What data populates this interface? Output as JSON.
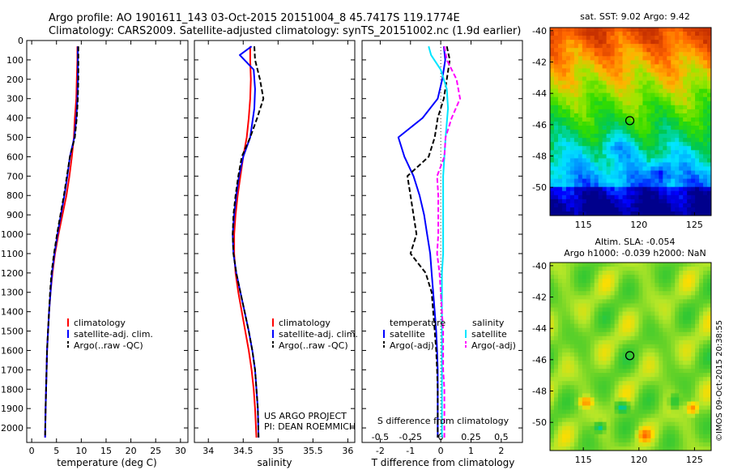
{
  "header": {
    "line1": "Argo profile: AO 1901611_143 03-Oct-2015 20151004_8 45.7417S 119.1774E",
    "line2": "Climatology: CARS2009. Satellite-adjusted climatology: synTS_20151002.nc (1.9d earlier)"
  },
  "colors": {
    "climatology": "#ff0000",
    "satellite": "#0000ff",
    "argo": "#000000",
    "satellite_salinity": "#00e5ff",
    "argo_salinity_diff": "#ff00ff"
  },
  "chart_data": [
    {
      "type": "line",
      "id": "temperature",
      "xlabel": "temperature (deg C)",
      "ylabel": "",
      "xlim": [
        -1,
        31.5
      ],
      "ylim": [
        0,
        2075
      ],
      "y_reversed": true,
      "xticks": [
        0,
        5,
        10,
        15,
        20,
        25,
        30
      ],
      "yticks": [
        0,
        100,
        200,
        300,
        400,
        500,
        600,
        700,
        800,
        900,
        1000,
        1100,
        1200,
        1300,
        1400,
        1500,
        1600,
        1700,
        1800,
        1900,
        2000
      ],
      "legend": {
        "position": "lower-center",
        "entries": [
          "climatology",
          "satellite-adj. clim.",
          "Argo(..raw -QC)"
        ]
      },
      "series": [
        {
          "name": "climatology",
          "color": "#ff0000",
          "dash": "solid",
          "x": [
            9.2,
            9.2,
            9.1,
            9.0,
            8.7,
            8.5,
            8.1,
            7.6,
            7.0,
            6.2,
            5.4,
            4.7,
            4.2,
            3.8,
            3.5,
            3.3,
            3.1,
            3.0,
            2.9,
            2.8,
            2.7
          ],
          "y": [
            30,
            100,
            200,
            300,
            400,
            500,
            600,
            700,
            800,
            900,
            1000,
            1100,
            1200,
            1300,
            1400,
            1500,
            1600,
            1700,
            1800,
            1900,
            2050
          ]
        },
        {
          "name": "satellite-adj. clim.",
          "color": "#0000ff",
          "dash": "solid",
          "x": [
            9.3,
            9.3,
            9.3,
            9.2,
            9.0,
            8.6,
            7.7,
            7.2,
            6.6,
            5.9,
            5.2,
            4.6,
            4.1,
            3.8,
            3.5,
            3.3,
            3.1,
            3.0,
            2.9,
            2.8,
            2.7
          ],
          "y": [
            30,
            100,
            200,
            300,
            400,
            500,
            600,
            700,
            800,
            900,
            1000,
            1100,
            1200,
            1300,
            1400,
            1500,
            1600,
            1700,
            1800,
            1900,
            2050
          ]
        },
        {
          "name": "Argo(..raw -QC)",
          "color": "#000000",
          "dash": "dashed",
          "x": [
            9.4,
            9.4,
            9.4,
            9.3,
            9.1,
            8.7,
            7.7,
            7.1,
            6.5,
            5.8,
            5.1,
            4.5,
            4.0,
            3.7,
            3.5,
            3.3,
            3.1,
            3.0,
            2.9,
            2.8,
            2.7
          ],
          "y": [
            30,
            100,
            200,
            300,
            400,
            500,
            600,
            700,
            800,
            900,
            1000,
            1100,
            1200,
            1300,
            1400,
            1500,
            1600,
            1700,
            1800,
            1900,
            2050
          ]
        }
      ]
    },
    {
      "type": "line",
      "id": "salinity",
      "xlabel": "salinity",
      "ylabel": "",
      "xlim": [
        33.8,
        36.1
      ],
      "ylim": [
        0,
        2075
      ],
      "y_reversed": true,
      "xticks": [
        34,
        34.5,
        35,
        35.5,
        36
      ],
      "legend": {
        "position": "lower-center",
        "entries": [
          "climatology",
          "satellite-adj. clim.",
          "Argo(..raw -QC)"
        ]
      },
      "annotation": [
        "US ARGO PROJECT",
        "PI: DEAN ROEMMICH"
      ],
      "series": [
        {
          "name": "climatology",
          "color": "#ff0000",
          "dash": "solid",
          "x": [
            34.6,
            34.6,
            34.61,
            34.6,
            34.58,
            34.55,
            34.5,
            34.46,
            34.42,
            34.39,
            34.37,
            34.37,
            34.39,
            34.43,
            34.48,
            34.53,
            34.58,
            34.62,
            34.65,
            34.67,
            34.69
          ],
          "y": [
            30,
            100,
            200,
            300,
            400,
            500,
            600,
            700,
            800,
            900,
            1000,
            1100,
            1200,
            1300,
            1400,
            1500,
            1600,
            1700,
            1800,
            1900,
            2050
          ]
        },
        {
          "name": "satellite-adj. clim.",
          "color": "#0000ff",
          "dash": "solid",
          "x": [
            34.62,
            34.45,
            34.65,
            34.67,
            34.66,
            34.6,
            34.5,
            34.44,
            34.4,
            34.37,
            34.35,
            34.36,
            34.4,
            34.46,
            34.52,
            34.58,
            34.63,
            34.67,
            34.69,
            34.71,
            34.72
          ],
          "y": [
            30,
            75,
            150,
            250,
            350,
            500,
            600,
            700,
            800,
            900,
            1000,
            1100,
            1200,
            1300,
            1400,
            1500,
            1600,
            1700,
            1800,
            1900,
            2050
          ]
        },
        {
          "name": "Argo(..raw -QC)",
          "color": "#000000",
          "dash": "dashed",
          "x": [
            34.66,
            34.67,
            34.74,
            34.79,
            34.7,
            34.6,
            34.48,
            34.43,
            34.39,
            34.36,
            34.35,
            34.36,
            34.4,
            34.46,
            34.52,
            34.58,
            34.63,
            34.67,
            34.69,
            34.71,
            34.72
          ],
          "y": [
            30,
            100,
            200,
            300,
            400,
            500,
            600,
            700,
            800,
            900,
            1000,
            1100,
            1200,
            1300,
            1400,
            1500,
            1600,
            1700,
            1800,
            1900,
            2050
          ]
        }
      ]
    },
    {
      "type": "line",
      "id": "difference",
      "xlabel": "T difference from climatology",
      "xlabel_top": "S difference from climatology",
      "ylabel": "",
      "xlim": [
        -2.6,
        2.7
      ],
      "ylim": [
        0,
        2075
      ],
      "y_reversed": true,
      "xticks": [
        -2,
        -1,
        0,
        1,
        2
      ],
      "s_xticks": [
        -0.5,
        -0.25,
        0,
        0.25,
        0.5
      ],
      "s_scale_factor": 4,
      "legend": {
        "position": "lower-center",
        "headers": [
          "temperature",
          "salinity"
        ],
        "entries": [
          "satellite",
          "Argo(-adj)",
          "satellite",
          "Argo(-adj)"
        ]
      },
      "series": [
        {
          "name": "T satellite",
          "color": "#0000ff",
          "dash": "solid",
          "x": [
            0.1,
            0.15,
            0.05,
            -0.1,
            -0.6,
            -1.4,
            -1.2,
            -0.9,
            -0.7,
            -0.55,
            -0.45,
            -0.35,
            -0.3,
            -0.25,
            -0.2,
            -0.15,
            -0.12,
            -0.1,
            -0.1,
            -0.1
          ],
          "y": [
            30,
            100,
            200,
            300,
            400,
            500,
            600,
            700,
            800,
            900,
            1000,
            1100,
            1200,
            1300,
            1400,
            1500,
            1600,
            1700,
            1800,
            2050
          ]
        },
        {
          "name": "T Argo(-adj)",
          "color": "#000000",
          "dash": "dashed",
          "x": [
            0.2,
            0.3,
            0.2,
            0.1,
            -0.1,
            -0.2,
            -0.4,
            -1.1,
            -1.0,
            -0.9,
            -0.8,
            -1.0,
            -0.5,
            -0.3,
            -0.25,
            -0.2,
            -0.15,
            -0.12,
            -0.1,
            -0.1
          ],
          "y": [
            30,
            100,
            200,
            300,
            400,
            500,
            600,
            700,
            800,
            900,
            1000,
            1100,
            1200,
            1300,
            1400,
            1500,
            1600,
            1700,
            1800,
            2050
          ]
        },
        {
          "name": "S satellite",
          "color": "#00e5ff",
          "dash": "solid",
          "x": [
            -0.1,
            -0.08,
            0.0,
            0.05,
            0.06,
            0.04,
            0.03,
            0.02,
            0.02,
            0.02,
            0.02,
            0.02,
            0.01,
            0.01,
            0.01,
            0.01,
            0.01,
            0.01,
            0.01,
            0.01
          ],
          "y": [
            30,
            75,
            150,
            250,
            350,
            500,
            600,
            700,
            800,
            900,
            1000,
            1100,
            1200,
            1300,
            1400,
            1500,
            1600,
            1700,
            1800,
            2050
          ]
        },
        {
          "name": "S Argo(-adj)",
          "color": "#ff00ff",
          "dash": "dashed",
          "x": [
            0.03,
            0.05,
            0.13,
            0.16,
            0.09,
            0.04,
            0.03,
            -0.03,
            -0.02,
            -0.02,
            -0.02,
            -0.03,
            -0.01,
            0.0,
            0.01,
            0.02,
            0.02,
            0.02,
            0.03,
            0.03
          ],
          "y": [
            30,
            100,
            200,
            300,
            400,
            500,
            600,
            700,
            800,
            900,
            1000,
            1100,
            1200,
            1300,
            1400,
            1500,
            1600,
            1700,
            1800,
            2050
          ]
        }
      ]
    },
    {
      "type": "heatmap",
      "id": "sst-map",
      "title": "sat. SST: 9.02 Argo: 9.42",
      "xlim": [
        112,
        126.5
      ],
      "ylim": [
        -51.8,
        -39.8
      ],
      "xticks": [
        115,
        120,
        125
      ],
      "yticks": [
        -40,
        -42,
        -44,
        -46,
        -48,
        -50
      ],
      "marker": {
        "lon": 119.18,
        "lat": -45.74
      },
      "colors": [
        "#00008c",
        "#0000ff",
        "#0096ff",
        "#00e6ff",
        "#00c850",
        "#32dc00",
        "#a0e600",
        "#ffb400",
        "#ff6400",
        "#c83200"
      ]
    },
    {
      "type": "heatmap",
      "id": "sla-map",
      "title": "Altim. SLA: -0.054",
      "subtitle": "Argo h1000: -0.039 h2000: NaN",
      "xlim": [
        112,
        126.5
      ],
      "ylim": [
        -51.8,
        -39.8
      ],
      "xticks": [
        115,
        120,
        125
      ],
      "yticks": [
        -40,
        -42,
        -44,
        -46,
        -48,
        -50
      ],
      "marker": {
        "lon": 119.18,
        "lat": -45.74
      },
      "side_label": "©IMOS 09-Oct-2015 20:38:55",
      "colors": [
        "#0050c8",
        "#00a0e6",
        "#00c8a0",
        "#32c832",
        "#64d228",
        "#b4e628",
        "#ffdc00",
        "#ffa000",
        "#ff6400"
      ]
    }
  ]
}
